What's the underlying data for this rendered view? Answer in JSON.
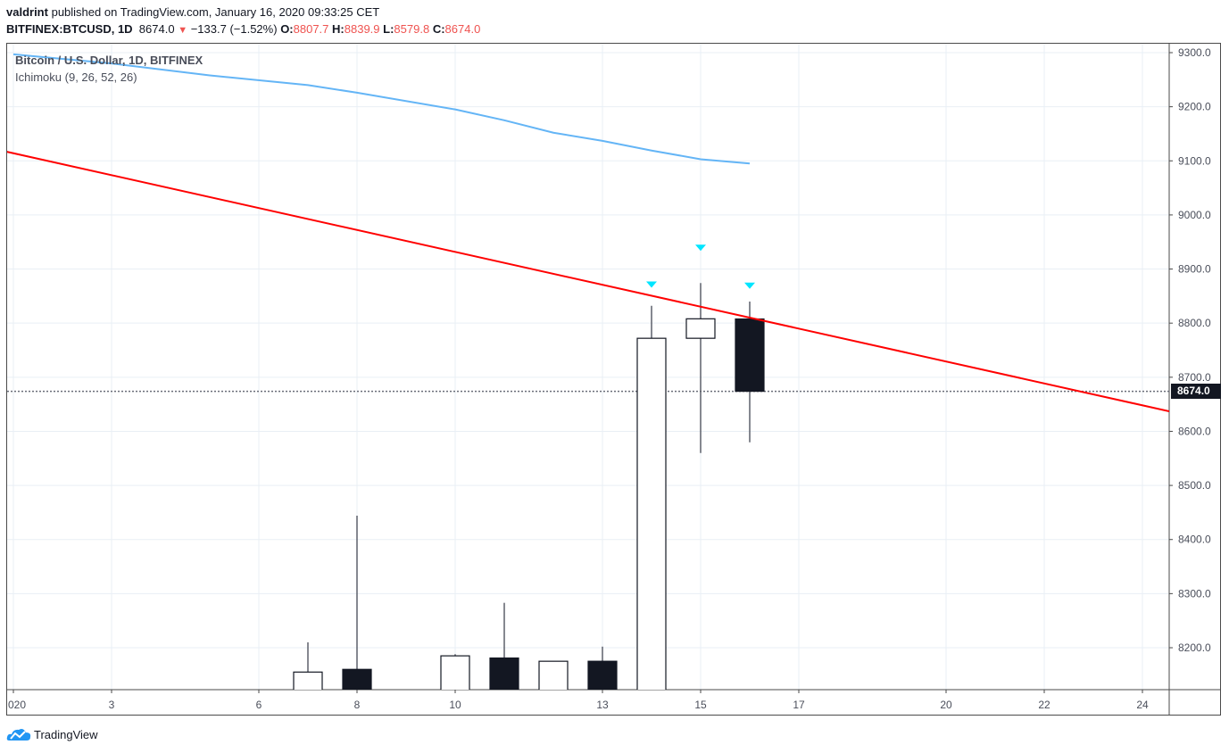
{
  "header": {
    "author": "valdrint",
    "published_text": "published on TradingView.com, January 16, 2020 09:33:25 CET",
    "symbol": "BITFINEX:BTCUSD, 1D",
    "last_price": "8674.0",
    "change": "−133.7 (−1.52%)",
    "open_label": "O:",
    "open": "8807.7",
    "high_label": "H:",
    "high": "8839.9",
    "low_label": "L:",
    "low": "8579.8",
    "close_label": "C:",
    "close": "8674.0",
    "direction_icon": "triangle-down-icon"
  },
  "legend": {
    "title": "Bitcoin / U.S. Dollar, 1D, BITFINEX",
    "indicator": "Ichimoku (9, 26, 52, 26)"
  },
  "price_tag": "8674.0",
  "footer": {
    "brand": "TradingView",
    "logo_icon": "tradingview-cloud-icon"
  },
  "colors": {
    "bull_body": "#ffffff",
    "bear_body": "#131722",
    "wick": "#5d606b",
    "trendline": "#ff0000",
    "ichimoku_line": "#64b5f6",
    "marker": "#00e5ff",
    "grid": "#e9eff5",
    "down": "#ef5350"
  },
  "chart_data": {
    "type": "candlestick",
    "title": "Bitcoin / U.S. Dollar, 1D, BITFINEX",
    "subtitle": "Ichimoku (9, 26, 52, 26)",
    "xlabel": "",
    "ylabel": "",
    "x_ticks": [
      "020",
      "3",
      "6",
      "8",
      "10",
      "13",
      "15",
      "17",
      "20",
      "22",
      "24"
    ],
    "y_ticks": [
      "9300.0",
      "9200.0",
      "9100.0",
      "9000.0",
      "8900.0",
      "8800.0",
      "8700.0",
      "8600.0",
      "8500.0",
      "8400.0",
      "8300.0",
      "8200.0"
    ],
    "ylim": [
      8120,
      9318
    ],
    "grid": true,
    "candles": [
      {
        "day": 7,
        "open": 8120,
        "high": 8210,
        "low": 8120,
        "close": 8155
      },
      {
        "day": 8,
        "open": 8160,
        "high": 8444,
        "low": 8120,
        "close": 8120
      },
      {
        "day": 10,
        "open": 8120,
        "high": 8188,
        "low": 8120,
        "close": 8185
      },
      {
        "day": 11,
        "open": 8181,
        "high": 8283,
        "low": 8120,
        "close": 8120
      },
      {
        "day": 12,
        "open": 8120,
        "high": 8175,
        "low": 8120,
        "close": 8175
      },
      {
        "day": 13,
        "open": 8175,
        "high": 8202,
        "low": 8120,
        "close": 8120
      },
      {
        "day": 14,
        "open": 8120,
        "high": 8832,
        "low": 8120,
        "close": 8772
      },
      {
        "day": 15,
        "open": 8772,
        "high": 8874,
        "low": 8560,
        "close": 8808
      },
      {
        "day": 16,
        "open": 8807.7,
        "high": 8839.9,
        "low": 8579.8,
        "close": 8674.0
      }
    ],
    "markers": [
      {
        "day": 14,
        "price": 8872,
        "shape": "triangle-down"
      },
      {
        "day": 15,
        "price": 8940,
        "shape": "triangle-down"
      },
      {
        "day": 16,
        "price": 8870,
        "shape": "triangle-down"
      }
    ],
    "trendline": {
      "start": {
        "day": 0.85,
        "price": 9117
      },
      "end": {
        "day": 24.55,
        "price": 8637
      }
    },
    "ichimoku_line": [
      {
        "day": 1,
        "price": 9297
      },
      {
        "day": 3,
        "price": 9280
      },
      {
        "day": 5,
        "price": 9258
      },
      {
        "day": 7,
        "price": 9240
      },
      {
        "day": 8,
        "price": 9226
      },
      {
        "day": 10,
        "price": 9195
      },
      {
        "day": 11,
        "price": 9175
      },
      {
        "day": 12,
        "price": 9152
      },
      {
        "day": 13,
        "price": 9137
      },
      {
        "day": 14,
        "price": 9119
      },
      {
        "day": 15,
        "price": 9103
      },
      {
        "day": 16,
        "price": 9095
      }
    ],
    "last_price_line": 8674.0
  }
}
